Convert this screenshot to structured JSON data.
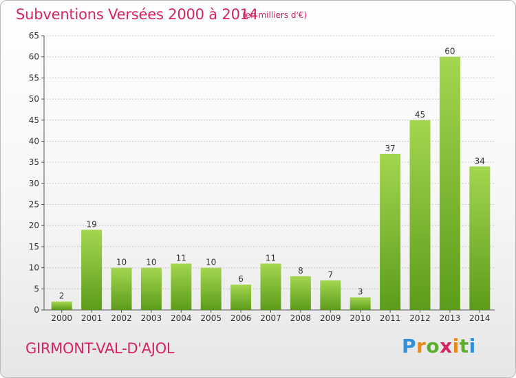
{
  "header": {
    "title": "Subventions Versées 2000 à 2014",
    "unit": "(en milliers d'€)"
  },
  "footer": {
    "town": "GIRMONT-VAL-D'AJOL",
    "brand": "Proxiti"
  },
  "colors": {
    "title": "#d8245e",
    "bar_light": "#a4d64f",
    "bar_dark": "#5c9c1a",
    "grid": "#c8c8c8"
  },
  "chart_data": {
    "type": "bar",
    "categories": [
      "2000",
      "2001",
      "2002",
      "2003",
      "2004",
      "2005",
      "2006",
      "2007",
      "2008",
      "2009",
      "2010",
      "2011",
      "2012",
      "2013",
      "2014"
    ],
    "values": [
      2,
      19,
      10,
      10,
      11,
      10,
      6,
      11,
      8,
      7,
      3,
      37,
      45,
      60,
      34
    ],
    "ylim": [
      0,
      65
    ],
    "yticks": [
      0,
      5,
      10,
      15,
      20,
      25,
      30,
      35,
      40,
      45,
      50,
      55,
      60,
      65
    ],
    "grid": true,
    "data_labels": true
  }
}
